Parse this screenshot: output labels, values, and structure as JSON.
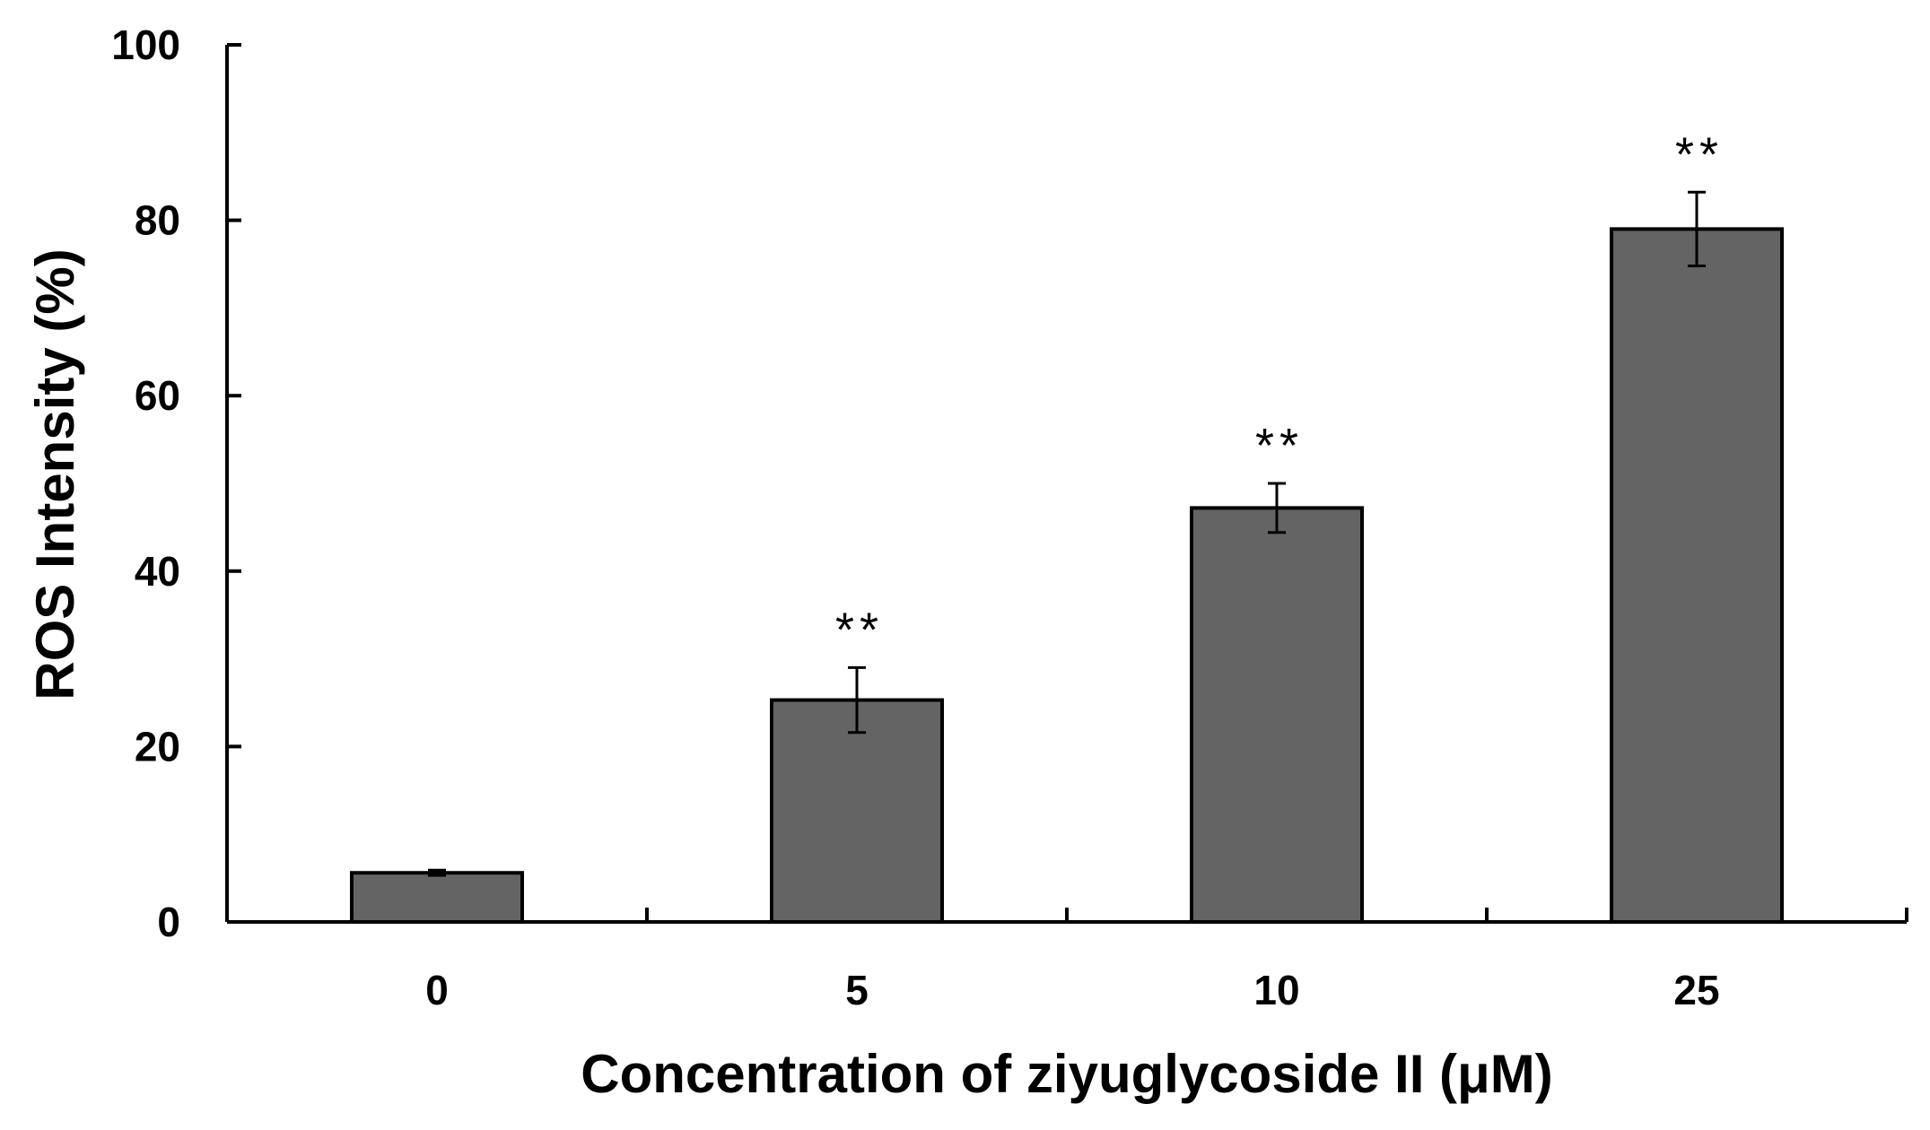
{
  "chart_data": {
    "type": "bar",
    "title": "",
    "xlabel": "Concentration of ziyuglycoside II (μM)",
    "ylabel": "ROS Intensity (%)",
    "categories": [
      "0",
      "5",
      "10",
      "25"
    ],
    "values": [
      5.6,
      25.3,
      47.2,
      79.0
    ],
    "error": [
      0.3,
      3.7,
      2.8,
      4.2
    ],
    "significance": [
      "",
      "**",
      "**",
      "**"
    ],
    "ylim": [
      0,
      100
    ],
    "yticks": [
      0,
      20,
      40,
      60,
      80,
      100
    ],
    "ytick_labels": [
      "0",
      "20",
      "40",
      "60",
      "80",
      "100"
    ],
    "grid": false,
    "legend": "none",
    "colors": {
      "bar_fill": "#646464",
      "bar_stroke": "#000000",
      "axis": "#000000",
      "error_bar": "#000000"
    }
  }
}
